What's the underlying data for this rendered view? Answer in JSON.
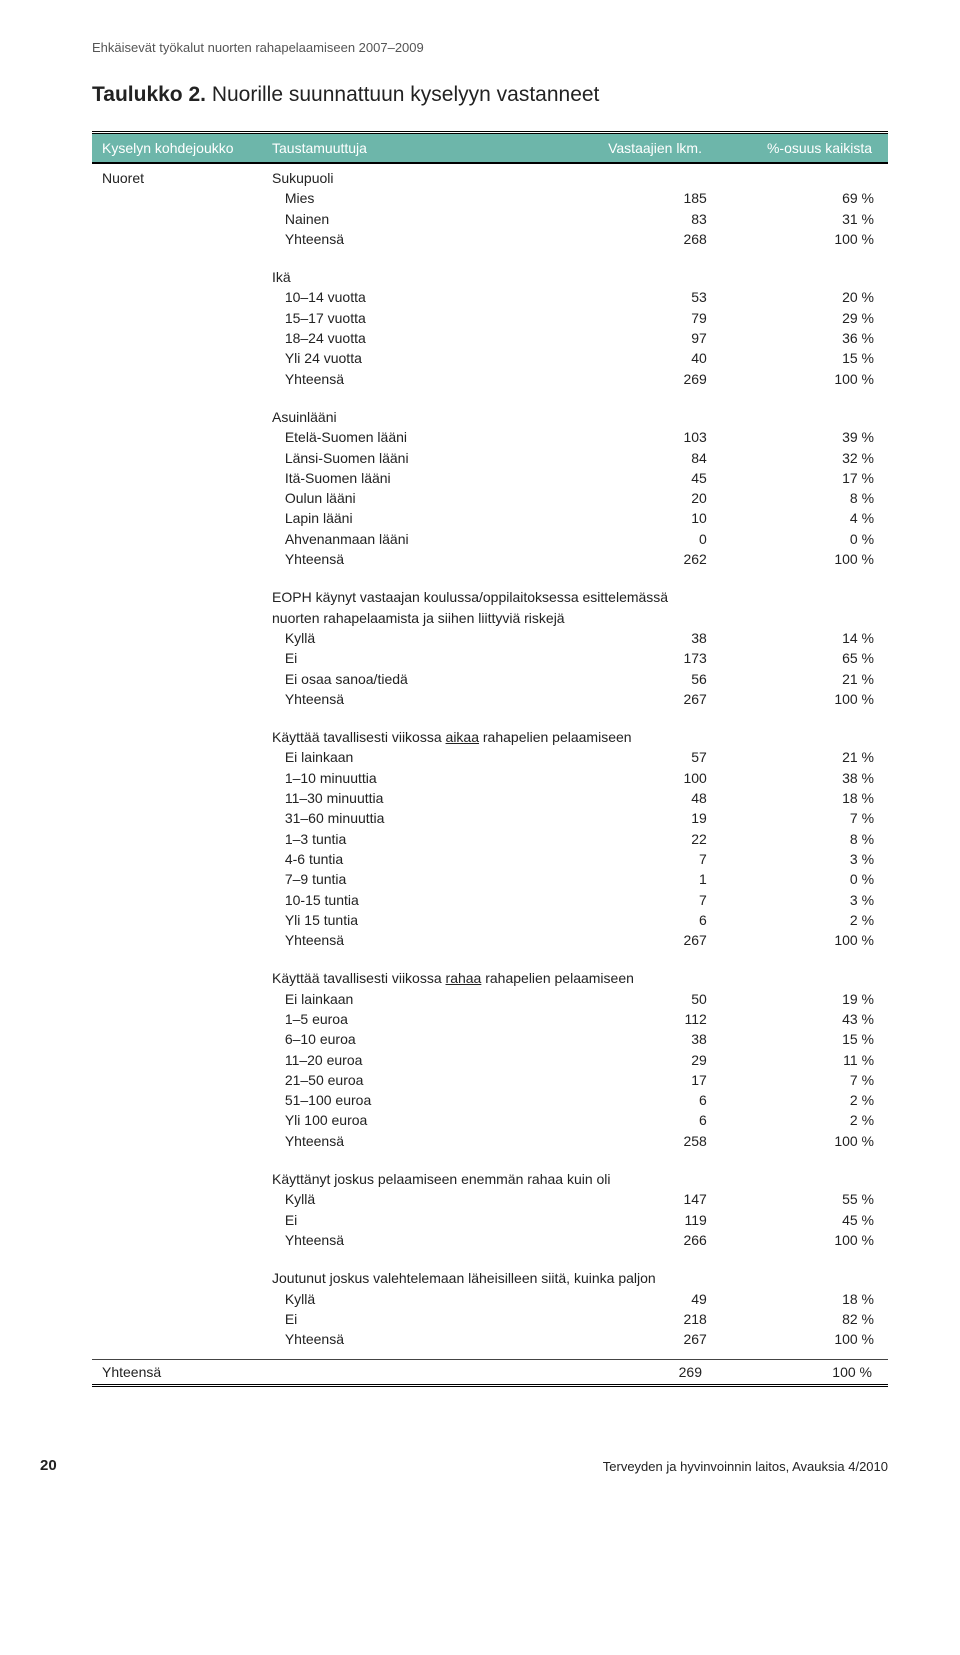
{
  "running_head": "Ehkäisevät työkalut nuorten rahapelaamiseen 2007–2009",
  "title_bold": "Taulukko 2.",
  "title_rest": " Nuorille suunnattuun kyselyyn vastanneet",
  "header": {
    "c1": "Kyselyn kohdejoukko",
    "c2": "Taustamuuttuja",
    "c3": "Vastaajien lkm.",
    "c4": "%-osuus kaikista"
  },
  "group_label": "Nuoret",
  "sections": [
    {
      "title": "Sukupuoli",
      "intro": null,
      "note": null,
      "rows": [
        {
          "label": "Mies",
          "n": "185",
          "p": "69 %"
        },
        {
          "label": "Nainen",
          "n": "83",
          "p": "31 %"
        },
        {
          "label": "Yhteensä",
          "n": "268",
          "p": "100 %"
        }
      ]
    },
    {
      "title": "Ikä",
      "intro": null,
      "note": null,
      "rows": [
        {
          "label": "10–14 vuotta",
          "n": "53",
          "p": "20 %"
        },
        {
          "label": "15–17 vuotta",
          "n": "79",
          "p": "29 %"
        },
        {
          "label": "18–24 vuotta",
          "n": "97",
          "p": "36 %"
        },
        {
          "label": "Yli 24 vuotta",
          "n": "40",
          "p": "15 %"
        },
        {
          "label": "Yhteensä",
          "n": "269",
          "p": "100 %"
        }
      ]
    },
    {
      "title": "Asuinlääni",
      "intro": null,
      "note": null,
      "rows": [
        {
          "label": "Etelä-Suomen lääni",
          "n": "103",
          "p": "39 %"
        },
        {
          "label": "Länsi-Suomen lääni",
          "n": "84",
          "p": "32 %"
        },
        {
          "label": "Itä-Suomen lääni",
          "n": "45",
          "p": "17 %"
        },
        {
          "label": "Oulun lääni",
          "n": "20",
          "p": "8 %"
        },
        {
          "label": "Lapin lääni",
          "n": "10",
          "p": "4 %"
        },
        {
          "label": "Ahvenanmaan lääni",
          "n": "0",
          "p": "0 %"
        },
        {
          "label": "Yhteensä",
          "n": "262",
          "p": "100 %"
        }
      ]
    },
    {
      "title": null,
      "intro": "EOPH käynyt vastaajan koulussa/oppilaitoksessa esittelemässä",
      "note": "nuorten rahapelaamista ja siihen liittyviä riskejä",
      "rows": [
        {
          "label": "Kyllä",
          "n": "38",
          "p": "14 %"
        },
        {
          "label": "Ei",
          "n": "173",
          "p": "65 %"
        },
        {
          "label": "Ei osaa sanoa/tiedä",
          "n": "56",
          "p": "21 %"
        },
        {
          "label": "Yhteensä",
          "n": "267",
          "p": "100 %"
        }
      ]
    },
    {
      "title": null,
      "intro_pre": "Käyttää tavallisesti viikossa ",
      "intro_u": "aikaa",
      "intro_post": " rahapelien pelaamiseen",
      "note": null,
      "rows": [
        {
          "label": "Ei lainkaan",
          "n": "57",
          "p": "21 %"
        },
        {
          "label": "1–10 minuuttia",
          "n": "100",
          "p": "38 %"
        },
        {
          "label": "11–30 minuuttia",
          "n": "48",
          "p": "18 %"
        },
        {
          "label": "31–60 minuuttia",
          "n": "19",
          "p": "7 %"
        },
        {
          "label": "1–3 tuntia",
          "n": "22",
          "p": "8 %"
        },
        {
          "label": "4-6 tuntia",
          "n": "7",
          "p": "3 %"
        },
        {
          "label": "7–9 tuntia",
          "n": "1",
          "p": "0 %"
        },
        {
          "label": "10-15 tuntia",
          "n": "7",
          "p": "3 %"
        },
        {
          "label": "Yli 15 tuntia",
          "n": "6",
          "p": "2 %"
        },
        {
          "label": "Yhteensä",
          "n": "267",
          "p": "100 %"
        }
      ]
    },
    {
      "title": null,
      "intro_pre": "Käyttää tavallisesti viikossa ",
      "intro_u": "rahaa",
      "intro_post": " rahapelien pelaamiseen",
      "note": null,
      "rows": [
        {
          "label": "Ei lainkaan",
          "n": "50",
          "p": "19 %"
        },
        {
          "label": "1–5 euroa",
          "n": "112",
          "p": "43 %"
        },
        {
          "label": "6–10 euroa",
          "n": "38",
          "p": "15 %"
        },
        {
          "label": "11–20 euroa",
          "n": "29",
          "p": "11 %"
        },
        {
          "label": "21–50 euroa",
          "n": "17",
          "p": "7 %"
        },
        {
          "label": "51–100 euroa",
          "n": "6",
          "p": "2 %"
        },
        {
          "label": "Yli 100 euroa",
          "n": "6",
          "p": "2 %"
        },
        {
          "label": "Yhteensä",
          "n": "258",
          "p": "100 %"
        }
      ]
    },
    {
      "title": null,
      "intro": "Käyttänyt joskus pelaamiseen enemmän rahaa kuin oli",
      "note": null,
      "rows": [
        {
          "label": "Kyllä",
          "n": "147",
          "p": "55 %"
        },
        {
          "label": "Ei",
          "n": "119",
          "p": "45 %"
        },
        {
          "label": "Yhteensä",
          "n": "266",
          "p": "100 %"
        }
      ]
    },
    {
      "title": null,
      "intro": "Joutunut joskus valehtelemaan läheisilleen siitä, kuinka paljon",
      "note": null,
      "rows": [
        {
          "label": "Kyllä",
          "n": "49",
          "p": "18 %"
        },
        {
          "label": "Ei",
          "n": "218",
          "p": "82 %"
        },
        {
          "label": "Yhteensä",
          "n": "267",
          "p": "100 %"
        }
      ]
    }
  ],
  "total_row": {
    "label": "Yhteensä",
    "n": "269",
    "p": "100 %"
  },
  "footer": {
    "page": "20",
    "source": "Terveyden ja hyvinvoinnin laitos, Avauksia 4/2010"
  }
}
